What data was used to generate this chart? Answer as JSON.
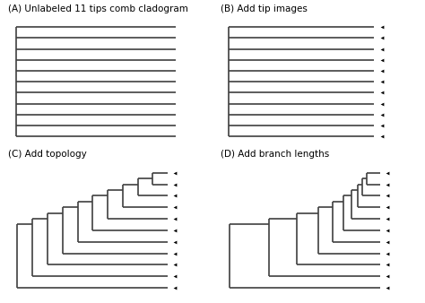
{
  "title_A": "(A) Unlabeled 11 tips comb cladogram",
  "title_B": "(B) Add tip images",
  "title_C": "(C) Add topology",
  "title_D": "(D) Add branch lengths",
  "n_tips": 11,
  "line_color": "#404040",
  "bg_color": "#ffffff",
  "title_fontsize": 7.5,
  "lw": 1.2,
  "tip_animals": [
    "f",
    "f",
    "f",
    "f",
    "f",
    "f",
    "f",
    "f",
    "f",
    "f",
    "f"
  ]
}
